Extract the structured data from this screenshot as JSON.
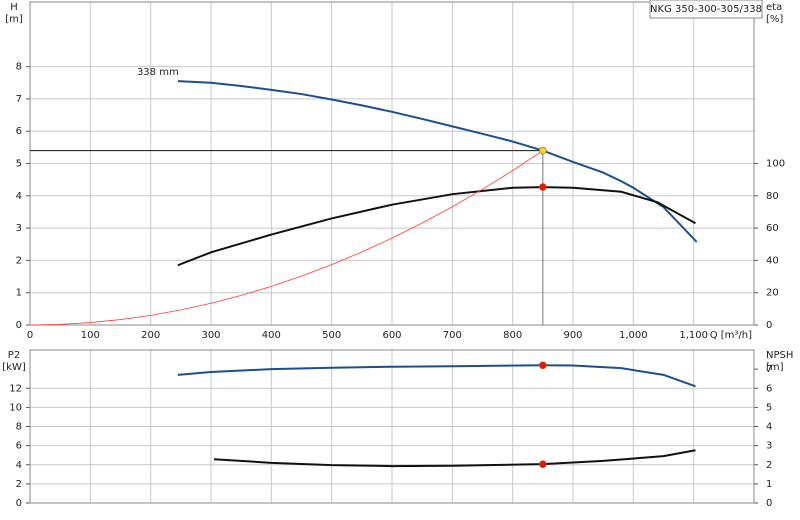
{
  "chart_data": [
    {
      "type": "line",
      "title": "NKG 350-300-305/338",
      "xlabel": "Q [m³/h]",
      "ylabel": "H",
      "yunit": "[m]",
      "y2label": "eta",
      "y2unit": "[%]",
      "xlim": [
        0,
        1200
      ],
      "xticks": [
        0,
        100,
        200,
        300,
        400,
        500,
        600,
        700,
        800,
        900,
        {
          "value": 1000,
          "label": "1,000"
        },
        {
          "value": 1100,
          "label": "1,100"
        }
      ],
      "ylim": [
        0,
        10
      ],
      "yticks": [
        0,
        1,
        2,
        3,
        4,
        5,
        6,
        7,
        8
      ],
      "y2lim": [
        0,
        200
      ],
      "y2ticks": [
        0,
        20,
        40,
        60,
        80,
        100
      ],
      "grid": true,
      "series": [
        {
          "color": "#1f4e8c",
          "width": 2,
          "curve_label": "338 mm",
          "x": [
            245,
            300,
            350,
            400,
            450,
            500,
            550,
            600,
            650,
            700,
            750,
            800,
            850,
            900,
            950,
            980,
            1000,
            1050,
            1105
          ],
          "values": [
            7.55,
            7.5,
            7.4,
            7.28,
            7.15,
            6.98,
            6.8,
            6.6,
            6.38,
            6.15,
            5.92,
            5.68,
            5.4,
            5.05,
            4.72,
            4.45,
            4.25,
            3.65,
            2.57
          ]
        },
        {
          "color": "#111111",
          "width": 2,
          "axis": "y2",
          "x": [
            245,
            300,
            400,
            500,
            600,
            700,
            800,
            850,
            900,
            980,
            1040,
            1103
          ],
          "values": [
            37,
            45,
            56,
            66,
            74.5,
            81,
            85,
            85.4,
            85,
            82.5,
            76,
            63
          ]
        },
        {
          "color": "#ff3b3b",
          "width": 0.8,
          "x": [
            0,
            50,
            100,
            150,
            200,
            250,
            300,
            350,
            400,
            450,
            500,
            550,
            600,
            650,
            700,
            750,
            800,
            850
          ],
          "values": [
            0,
            0.019,
            0.075,
            0.168,
            0.299,
            0.467,
            0.673,
            0.916,
            1.196,
            1.514,
            1.869,
            2.261,
            2.69,
            3.158,
            3.66,
            4.204,
            4.78,
            5.4
          ]
        }
      ],
      "reference_lines": [
        {
          "y": 5.4,
          "color": "#111111"
        },
        {
          "x": 850,
          "color": "#777777"
        }
      ],
      "markers": [
        {
          "x": 850,
          "y": 5.4,
          "color": "#ffd21f"
        },
        {
          "x": 850,
          "y": 85.4,
          "axis": "y2",
          "color": "#ee1111"
        }
      ]
    },
    {
      "type": "line",
      "shares_x": true,
      "ylabel": "P2",
      "yunit": "[kW]",
      "y2label": "NPSH",
      "y2unit": "[m]",
      "xlim": [
        0,
        1200
      ],
      "ylim": [
        0,
        16
      ],
      "yticks": [
        0,
        2,
        4,
        6,
        8,
        10,
        12
      ],
      "y2lim": [
        0,
        8
      ],
      "y2ticks": [
        0,
        1,
        2,
        3,
        4,
        5,
        6,
        7
      ],
      "grid": true,
      "series": [
        {
          "color": "#1f4e8c",
          "width": 2,
          "x": [
            245,
            300,
            400,
            500,
            600,
            700,
            850,
            900,
            980,
            1050,
            1103
          ],
          "values": [
            13.4,
            13.7,
            14.0,
            14.15,
            14.25,
            14.3,
            14.4,
            14.38,
            14.1,
            13.4,
            12.2
          ]
        },
        {
          "color": "#111111",
          "width": 2,
          "axis": "y2",
          "x": [
            305,
            400,
            500,
            600,
            700,
            850,
            950,
            1050,
            1103
          ],
          "values": [
            2.29,
            2.1,
            1.98,
            1.93,
            1.95,
            2.03,
            2.2,
            2.45,
            2.76
          ]
        }
      ],
      "markers": [
        {
          "x": 850,
          "y": 14.4,
          "color": "#ee1111"
        },
        {
          "x": 850,
          "y": 2.03,
          "axis": "y2",
          "color": "#ee1111"
        }
      ]
    }
  ]
}
